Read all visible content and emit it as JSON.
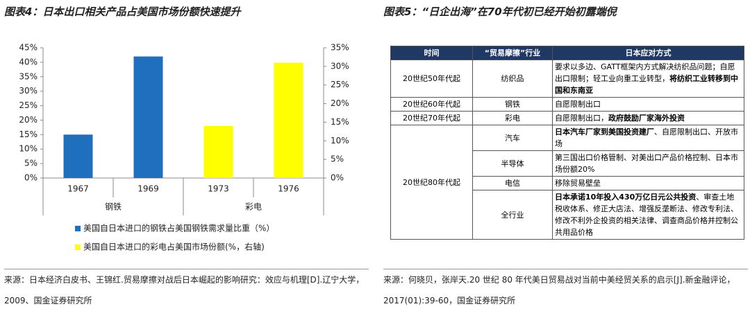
{
  "left": {
    "title": "图表4：日本出口相关产品占美国市场份额快速提升",
    "chart_data": {
      "type": "bar",
      "categories": [
        "1967",
        "1969",
        "1973",
        "1976"
      ],
      "groups": [
        "钢铁",
        "彩电"
      ],
      "series": [
        {
          "name": "美国自日本进口的钢铁占美国钢铁需求量比重（%）",
          "color": "#1f6fbf",
          "values": [
            15,
            42,
            null,
            null
          ]
        },
        {
          "name": "美国自日本进口的彩电占美国市场份额(%，右轴)",
          "color": "#ffff00",
          "values": [
            null,
            null,
            14,
            31
          ],
          "axis": "y2"
        }
      ],
      "ylim": [
        0,
        45
      ],
      "yticks": [
        {
          "value": 0,
          "label": "0%"
        },
        {
          "value": 5,
          "label": "5%"
        },
        {
          "value": 10,
          "label": "10%"
        },
        {
          "value": 15,
          "label": "15%"
        },
        {
          "value": 20,
          "label": "20%"
        },
        {
          "value": 25,
          "label": "25%"
        },
        {
          "value": 30,
          "label": "30%"
        },
        {
          "value": 35,
          "label": "35%"
        },
        {
          "value": 40,
          "label": "40%"
        },
        {
          "value": 45,
          "label": "45%"
        }
      ],
      "y2lim": [
        0,
        35
      ],
      "y2ticks": [
        {
          "value": 0,
          "label": "0%"
        },
        {
          "value": 5,
          "label": "5%"
        },
        {
          "value": 10,
          "label": "10%"
        },
        {
          "value": 15,
          "label": "15%"
        },
        {
          "value": 20,
          "label": "20%"
        },
        {
          "value": 25,
          "label": "25%"
        },
        {
          "value": 30,
          "label": "30%"
        },
        {
          "value": 35,
          "label": "35%"
        }
      ]
    },
    "source": "来源：日本经济白皮书、王锦红.贸易摩擦对战后日本崛起的影响研究：效应与机理[D].辽宁大学，2009、国金证券研究所"
  },
  "right": {
    "title": "图表5：“日企出海”在70年代初已经开始初露端倪",
    "table": {
      "header": [
        "时间",
        "“贸易摩擦”行业",
        "日本应对方式"
      ],
      "groups": [
        {
          "period": "20世纪50年代起",
          "rows": [
            {
              "industry": "纺织品",
              "response": [
                {
                  "text": "要求以多边、GATT框架内方式解决纺织品问题；自愿出口限制；轻工业向重工业转型，",
                  "bold": false
                },
                {
                  "text": "将纺织工业转移到中国和东南亚",
                  "bold": true
                }
              ]
            }
          ]
        },
        {
          "period": "20世纪60年代起",
          "rows": [
            {
              "industry": "钢铁",
              "response": [
                {
                  "text": "自愿限制出口",
                  "bold": false
                }
              ]
            }
          ]
        },
        {
          "period": "20世纪70年代起",
          "rows": [
            {
              "industry": "彩电",
              "response": [
                {
                  "text": "自愿限制出口，",
                  "bold": false
                },
                {
                  "text": "政府鼓励厂家海外投资",
                  "bold": true
                }
              ]
            }
          ]
        },
        {
          "period": "20世纪80年代起",
          "rows": [
            {
              "industry": "汽车",
              "response": [
                {
                  "text": "日本汽车厂家到美国投资建厂",
                  "bold": true
                },
                {
                  "text": "、自愿限制出口、开放市场",
                  "bold": false
                }
              ]
            },
            {
              "industry": "半导体",
              "response": [
                {
                  "text": "第三国出口价格管制、对美出口产品价格控制、日本市场份额20%",
                  "bold": false
                }
              ]
            },
            {
              "industry": "电信",
              "response": [
                {
                  "text": "移除贸易壁垒",
                  "bold": false
                }
              ]
            },
            {
              "industry": "全行业",
              "response": [
                {
                  "text": "日本承诺10年投入430万亿日元公共投资",
                  "bold": true
                },
                {
                  "text": "、审查土地税收体系、修正大店法、增强反垄断法、修改专利法、修改不利外企投资的相关法律、调查商品价格并控制公共用品价格",
                  "bold": false
                }
              ]
            }
          ]
        }
      ]
    },
    "source": "来源：何晓贝，张岸天.20 世纪 80 年代美日贸易战对当前中美经贸关系的启示[J].新金融评论，2017(01):39-60，国金证券研究所"
  }
}
